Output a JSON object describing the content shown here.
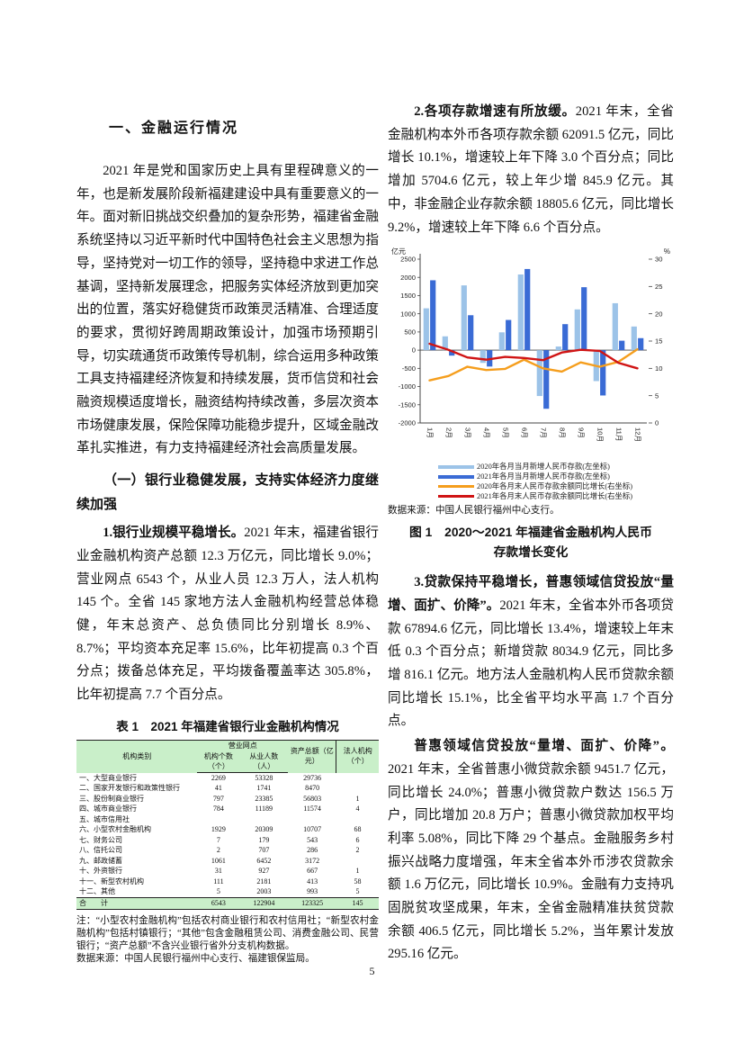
{
  "page": {
    "number": "5"
  },
  "left": {
    "section_title": "一、金融运行情况",
    "para1": "2021 年是党和国家历史上具有里程碑意义的一年，也是新发展阶段新福建建设中具有重要意义的一年。面对新旧挑战交织叠加的复杂形势，福建省金融系统坚持以习近平新时代中国特色社会主义思想为指导，坚持党对一切工作的领导，坚持稳中求进工作总基调，坚持新发展理念，把服务实体经济放到更加突出的位置，落实好稳健货币政策灵活精准、合理适度的要求，贯彻好跨周期政策设计，加强市场预期引导，切实疏通货币政策传导机制，综合运用多种政策工具支持福建经济恢复和持续发展，货币信贷和社会融资规模适度增长，融资结构持续改善，多层次资本市场健康发展，保险保障功能稳步提升，区域金融改革扎实推进，有力支持福建经济社会高质量发展。",
    "subsection_title": "（一）银行业稳健发展，支持实体经济力度继续加强",
    "para2_lead": "1.银行业规模平稳增长。",
    "para2_rest": "2021 年末，福建省银行业金融机构资产总额 12.3 万亿元，同比增长 9.0%；营业网点 6543 个，从业人员 12.3 万人，法人机构 145 个。全省 145 家地方法人金融机构经营总体稳健，年末总资产、总负债同比分别增长 8.9%、8.7%；平均资本充足率 15.6%，比年初提高 0.3 个百分点；拨备总体充足，平均拨备覆盖率达 305.8%，比年初提高 7.7 个百分点。",
    "table": {
      "caption": "表 1　2021 年福建省银行业金融机构情况",
      "col_group_header": "营业网点",
      "headers": [
        "机构类别",
        "机构个数（个）",
        "从业人数（人）",
        "资产总额（亿元）",
        "法人机构（个）"
      ],
      "rows": [
        [
          "一、大型商业银行",
          "2269",
          "53328",
          "29736",
          ""
        ],
        [
          "二、国家开发银行和政策性银行",
          "41",
          "1741",
          "8470",
          ""
        ],
        [
          "三、股份制商业银行",
          "797",
          "23385",
          "56803",
          "1"
        ],
        [
          "四、城市商业银行",
          "784",
          "11189",
          "11574",
          "4"
        ],
        [
          "五、城市信用社",
          "",
          "",
          "",
          ""
        ],
        [
          "六、小型农村金融机构",
          "1929",
          "20309",
          "10707",
          "68"
        ],
        [
          "七、财务公司",
          "7",
          "179",
          "543",
          "6"
        ],
        [
          "八、信托公司",
          "2",
          "707",
          "286",
          "2"
        ],
        [
          "九、邮政储蓄",
          "1061",
          "6452",
          "3172",
          ""
        ],
        [
          "十、外资银行",
          "31",
          "927",
          "667",
          "1"
        ],
        [
          "十一、新型农村机构",
          "111",
          "2181",
          "413",
          "58"
        ],
        [
          "十二、其他",
          "5",
          "2003",
          "993",
          "5"
        ]
      ],
      "total_row": [
        "合　　计",
        "6543",
        "122904",
        "123325",
        "145"
      ],
      "note": "注：“小型农村金融机构”包括农村商业银行和农村信用社；“新型农村金融机构”包括村镇银行；“其他”包含金融租赁公司、消费金融公司、民营银行；“资产总额”不含兴业银行省外分支机构数据。",
      "source": "数据来源：中国人民银行福州中心支行、福建银保监局。"
    }
  },
  "right": {
    "para3_lead": "2.各项存款增速有所放缓。",
    "para3_rest": "2021 年末，全省金融机构本外币各项存款余额 62091.5 亿元，同比增长 10.1%，增速较上年下降 3.0 个百分点；同比增加 5704.6 亿元，较上年少增 845.9 亿元。其中，非金融企业存款余额 18805.6 亿元，同比增长 9.2%，增速较上年下降 6.6 个百分点。",
    "figure": {
      "source": "数据来源：中国人民银行福州中心支行。",
      "caption": "图 1　2020～2021 年福建省金融机构人民币存款增长变化"
    },
    "para4_lead": "3.贷款保持平稳增长，普惠领域信贷投放“量增、面扩、价降”。",
    "para4_rest": "2021 年末，全省本外币各项贷款 67894.6 亿元，同比增长 13.4%，增速较上年末低 0.3 个百分点；新增贷款 8034.9 亿元，同比多增 816.1 亿元。地方法人金融机构人民币贷款余额同比增长 15.1%，比全省平均水平高 1.7 个百分点。",
    "para5_lead": "普惠领域信贷投放“量增、面扩、价降”。",
    "para5_rest": "2021 年末，全省普惠小微贷款余额 9451.7 亿元，同比增长 24.0%；普惠小微贷款户数达 156.5 万户，同比增加 20.8 万户；普惠小微贷款加权平均利率 5.08%，同比下降 29 个基点。金融服务乡村振兴战略力度增强，年末全省本外币涉农贷款余额 1.6 万亿元，同比增长 10.9%。金融有力支持巩固脱贫攻坚成果，年末，全省金融精准扶贫贷款余额 406.5 亿元，同比增长 5.2%，当年累计发放 295.16 亿元。"
  },
  "chart_data": {
    "type": "bar",
    "subtype": "combo-bar-line-dual-axis",
    "title": "图 1　2020～2021 年福建省金融机构人民币存款增长变化",
    "unit_left": "亿元",
    "unit_right": "%",
    "categories": [
      "1月",
      "2月",
      "3月",
      "4月",
      "5月",
      "6月",
      "7月",
      "8月",
      "9月",
      "10月",
      "11月",
      "12月"
    ],
    "left_axis": {
      "min": -2000,
      "max": 2500,
      "step": 500,
      "label": "亿元"
    },
    "right_axis": {
      "min": 0,
      "max": 30,
      "step": 5,
      "label": "%"
    },
    "grid": false,
    "legend_position": "bottom",
    "series": [
      {
        "name": "2020年各月当月新增人民币存款(左坐标)",
        "type": "bar",
        "axis": "left",
        "color": "#9cc3e8",
        "values": [
          1150,
          380,
          1780,
          -350,
          490,
          2080,
          -1260,
          100,
          1120,
          -850,
          1290,
          650
        ]
      },
      {
        "name": "2021年各月当月新增人民币存款(左坐标)",
        "type": "bar",
        "axis": "left",
        "color": "#3a6bd5",
        "values": [
          1920,
          -150,
          960,
          -450,
          830,
          2230,
          -1610,
          715,
          1730,
          -1245,
          260,
          330
        ]
      },
      {
        "name": "2020年各月末人民币存款余额同比增长(右坐标)",
        "type": "line",
        "axis": "right",
        "color": "#f59e1d",
        "values": [
          7.8,
          8.6,
          10.3,
          9.7,
          9.9,
          11.6,
          10.0,
          9.4,
          11.1,
          10.3,
          11.2,
          13.5
        ]
      },
      {
        "name": "2021年各月末人民币存款余额同比增长(右坐标)",
        "type": "line",
        "axis": "right",
        "color": "#d01414",
        "values": [
          14.5,
          13.4,
          12.0,
          11.6,
          12.1,
          11.9,
          11.5,
          12.9,
          13.4,
          13.2,
          11.0,
          10.0
        ]
      }
    ]
  }
}
